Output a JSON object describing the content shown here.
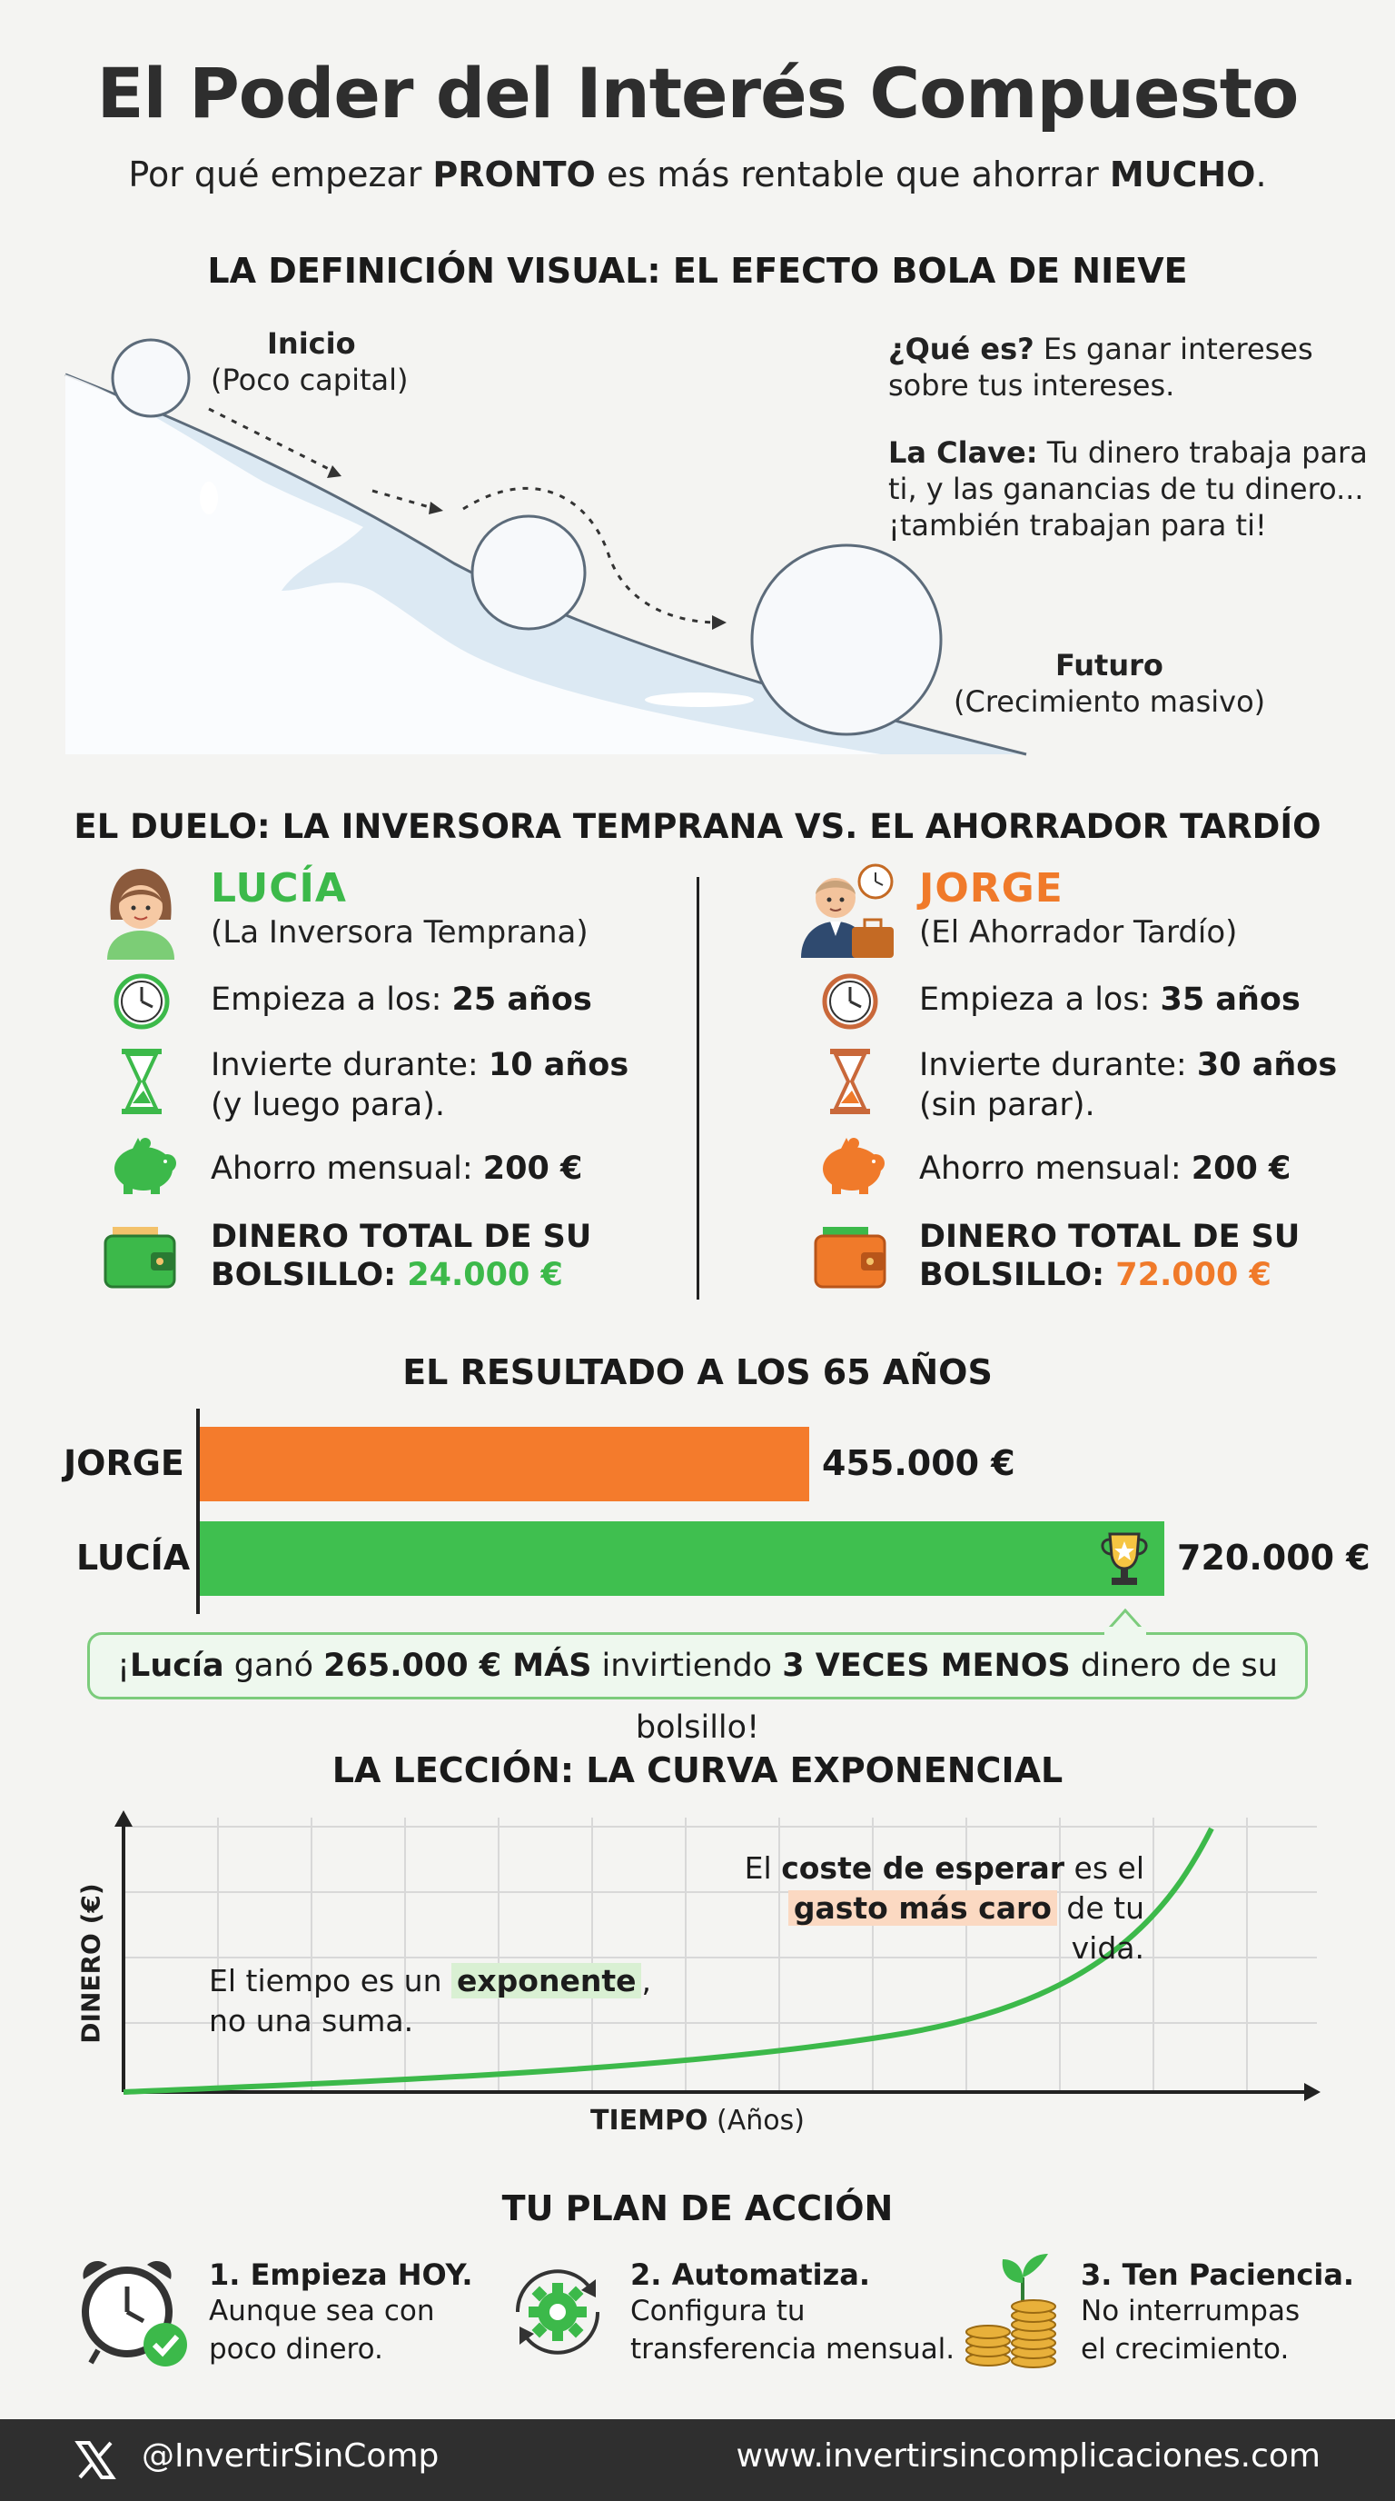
{
  "header": {
    "title": "El Poder del Interés Compuesto",
    "subtitle_part1": "Por qué empezar ",
    "subtitle_bold1": "PRONTO",
    "subtitle_part2": " es más rentable que ahorrar ",
    "subtitle_bold2": "MUCHO",
    "subtitle_part3": "."
  },
  "definition": {
    "heading": "LA DEFINICIÓN VISUAL: EL EFECTO BOLA DE NIEVE",
    "start_label": "Inicio",
    "start_sub": "(Poco capital)",
    "end_label": "Futuro",
    "end_sub": "(Crecimiento masivo)",
    "what_bold": "¿Qué es?",
    "what_text_1": " Es ganar intereses",
    "what_text_2": "sobre tus intereses.",
    "key_bold": "La Clave:",
    "key_text_1": " Tu dinero trabaja para",
    "key_text_2": "ti, y las ganancias de tu dinero...",
    "key_text_3": "¡también trabajan para ti!"
  },
  "duel": {
    "heading": "EL DUELO: LA INVERSORA TEMPRANA VS. EL AHORRADOR TARDÍO",
    "lucia": {
      "name": "LUCÍA",
      "role": "(La Inversora Temprana)",
      "start_label": "Empieza a los: ",
      "start_value": "25 años",
      "duration_label": "Invierte durante: ",
      "duration_value": "10 años",
      "duration_note": "(y luego para).",
      "monthly_label": "Ahorro mensual: ",
      "monthly_value": "200 €",
      "total_label_1": "DINERO TOTAL DE SU",
      "total_label_2": "BOLSILLO: ",
      "total_value": "24.000 €",
      "color": "#3cb94a"
    },
    "jorge": {
      "name": "JORGE",
      "role": "(El Ahorrador Tardío)",
      "start_label": "Empieza a los: ",
      "start_value": "35 años",
      "duration_label": "Invierte durante: ",
      "duration_value": "30 años",
      "duration_note": "(sin parar).",
      "monthly_label": "Ahorro mensual: ",
      "monthly_value": "200 €",
      "total_label_1": "DINERO TOTAL DE SU",
      "total_label_2": "BOLSILLO: ",
      "total_value": "72.000 €",
      "color": "#f07a2a"
    }
  },
  "result": {
    "heading": "EL RESULTADO A LOS 65 AÑOS",
    "bars": [
      {
        "label": "JORGE",
        "value": 455000,
        "value_text": "455.000 €",
        "color": "#f47b2c"
      },
      {
        "label": "LUCÍA",
        "value": 720000,
        "value_text": "720.000 €",
        "color": "#3fbf4f"
      }
    ],
    "callout": {
      "p1": "¡",
      "b1": "Lucía",
      "p2": " ganó ",
      "b2": "265.000 € MÁS",
      "p3": " invirtiendo ",
      "b3": "3 VECES MENOS",
      "p4": " dinero de su bolsillo!"
    }
  },
  "lesson": {
    "heading": "LA LECCIÓN: LA CURVA EXPONENCIAL",
    "ylabel": "DINERO (€)",
    "xlabel_bold": "TIEMPO",
    "xlabel_rest": " (Años)",
    "note1_p1": "El tiempo es un ",
    "note1_hl": "exponente",
    "note1_p2": ",",
    "note1_line2": "no una suma.",
    "note2_p1": "El ",
    "note2_b": "coste de esperar",
    "note2_p2": " es el",
    "note2_hl": "gasto más caro",
    "note2_p3": " de tu vida."
  },
  "plan": {
    "heading": "TU PLAN DE ACCIÓN",
    "steps": [
      {
        "title": "1. Empieza HOY.",
        "line1": "Aunque sea con",
        "line2": "poco dinero.",
        "icon": "alarm-clock-icon"
      },
      {
        "title": "2. Automatiza.",
        "line1": "Configura tu",
        "line2": "transferencia mensual.",
        "icon": "gear-cycle-icon"
      },
      {
        "title": "3. Ten Paciencia.",
        "line1": "No interrumpas",
        "line2": "el crecimiento.",
        "icon": "coin-plant-icon"
      }
    ]
  },
  "footer": {
    "handle": "@InvertirSinComp",
    "website": "www.invertirsincomplicaciones.com"
  }
}
